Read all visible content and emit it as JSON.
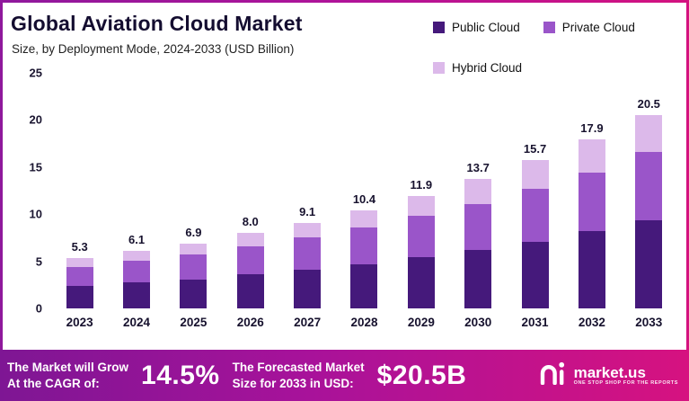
{
  "header": {
    "title": "Global Aviation Cloud Market",
    "subtitle": "Size, by Deployment Mode, 2024-2033 (USD Billion)"
  },
  "legend": [
    {
      "label": "Public Cloud",
      "color": "#45197b"
    },
    {
      "label": "Private Cloud",
      "color": "#9a55c9"
    },
    {
      "label": "Hybrid Cloud",
      "color": "#dcb9ea"
    }
  ],
  "chart_data": {
    "type": "bar",
    "stacked": true,
    "title": "Global Aviation Cloud Market",
    "subtitle": "Size, by Deployment Mode, 2024-2033 (USD Billion)",
    "categories": [
      "2023",
      "2024",
      "2025",
      "2026",
      "2027",
      "2028",
      "2029",
      "2030",
      "2031",
      "2032",
      "2033"
    ],
    "totals": [
      "5.3",
      "6.1",
      "6.9",
      "8.0",
      "9.1",
      "10.4",
      "11.9",
      "13.7",
      "15.7",
      "17.9",
      "20.5"
    ],
    "series": [
      {
        "name": "Public Cloud",
        "color": "#45197b",
        "values": [
          2.4,
          2.8,
          3.1,
          3.6,
          4.1,
          4.7,
          5.4,
          6.2,
          7.1,
          8.2,
          9.4
        ]
      },
      {
        "name": "Private Cloud",
        "color": "#9a55c9",
        "values": [
          2.0,
          2.3,
          2.6,
          3.0,
          3.4,
          3.9,
          4.4,
          4.9,
          5.6,
          6.2,
          7.2
        ]
      },
      {
        "name": "Hybrid Cloud",
        "color": "#dcb9ea",
        "values": [
          0.9,
          1.0,
          1.2,
          1.4,
          1.6,
          1.8,
          2.1,
          2.6,
          3.0,
          3.5,
          3.9
        ]
      }
    ],
    "xlabel": "",
    "ylabel": "",
    "ylim": [
      0,
      25
    ],
    "yticks": [
      0,
      5,
      10,
      15,
      20,
      25
    ],
    "grid": false,
    "legend_position": "top-right"
  },
  "footer": {
    "cagr_line1": "The Market will Grow",
    "cagr_line2": "At the CAGR of:",
    "cagr_value": "14.5%",
    "forecast_line1": "The Forecasted Market",
    "forecast_line2": "Size for 2033 in USD:",
    "forecast_value": "$20.5B",
    "brand": "market.us",
    "tagline": "ONE STOP SHOP FOR THE REPORTS"
  }
}
